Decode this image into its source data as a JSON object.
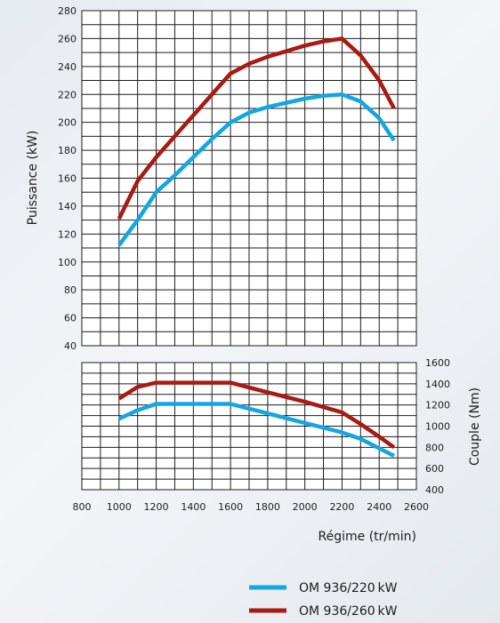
{
  "chart_data": [
    {
      "type": "line",
      "panel": "power",
      "ylabel": "Puissance (kW)",
      "ylim": [
        40,
        280
      ],
      "xlim": [
        800,
        2600
      ],
      "yticks": [
        "40",
        "60",
        "80",
        "100",
        "120",
        "140",
        "160",
        "180",
        "200",
        "220",
        "240",
        "260",
        "280"
      ],
      "series": [
        {
          "name": "OM 936/220 kW",
          "color": "#12a7e0",
          "x": [
            1000,
            1100,
            1200,
            1300,
            1400,
            1500,
            1600,
            1700,
            1800,
            1900,
            2000,
            2100,
            2200,
            2300,
            2400,
            2480
          ],
          "y": [
            112,
            130,
            150,
            162,
            175,
            188,
            200,
            207,
            211,
            214,
            217,
            219,
            220,
            215,
            203,
            187
          ]
        },
        {
          "name": "OM 936/260 kW",
          "color": "#a81a12",
          "x": [
            1000,
            1100,
            1200,
            1300,
            1400,
            1500,
            1600,
            1700,
            1800,
            1900,
            2000,
            2100,
            2200,
            2300,
            2400,
            2480
          ],
          "y": [
            131,
            158,
            175,
            190,
            205,
            220,
            235,
            242,
            247,
            251,
            255,
            258,
            260,
            248,
            230,
            210
          ]
        }
      ]
    },
    {
      "type": "line",
      "panel": "torque",
      "ylabel": "Couple (Nm)",
      "ylim": [
        400,
        1600
      ],
      "xlim": [
        800,
        2600
      ],
      "yticks": [
        "400",
        "600",
        "800",
        "1000",
        "1200",
        "1400",
        "1600"
      ],
      "xlabel": "Régime (tr/min)",
      "xticks": [
        "800",
        "1000",
        "1200",
        "1400",
        "1600",
        "1800",
        "2000",
        "2200",
        "2400",
        "2600"
      ],
      "series": [
        {
          "name": "OM 936/220 kW",
          "color": "#12a7e0",
          "x": [
            1000,
            1100,
            1200,
            1300,
            1400,
            1500,
            1600,
            1800,
            2000,
            2200,
            2300,
            2400,
            2480
          ],
          "y": [
            1070,
            1150,
            1210,
            1210,
            1210,
            1210,
            1210,
            1120,
            1030,
            940,
            880,
            790,
            720
          ]
        },
        {
          "name": "OM 936/260 kW",
          "color": "#a81a12",
          "x": [
            1000,
            1100,
            1200,
            1300,
            1400,
            1500,
            1600,
            1800,
            2000,
            2200,
            2300,
            2400,
            2480
          ],
          "y": [
            1260,
            1370,
            1410,
            1410,
            1410,
            1410,
            1410,
            1320,
            1230,
            1130,
            1020,
            900,
            800
          ]
        }
      ]
    }
  ],
  "legend": {
    "items": [
      {
        "label": "OM 936/220 kW",
        "color": "#12a7e0"
      },
      {
        "label": "OM 936/260 kW",
        "color": "#a81a12"
      }
    ]
  }
}
